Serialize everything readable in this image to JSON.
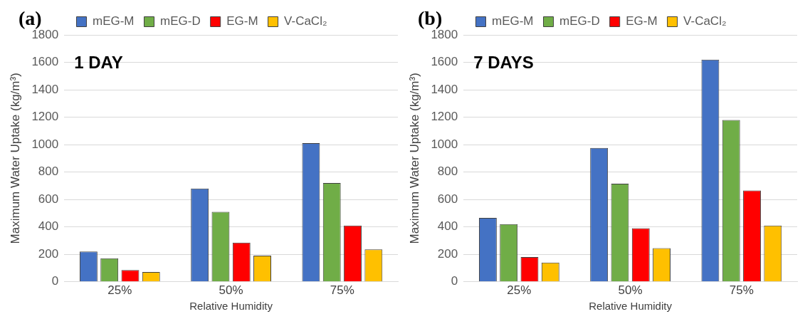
{
  "chart_data": [
    {
      "type": "bar",
      "title": "(a)",
      "annotations": [
        "1 DAY"
      ],
      "xlabel": "Relative Humidity",
      "ylabel": "Maximum Water Uptake (kg/m³)",
      "categories": [
        "25%",
        "50%",
        "75%"
      ],
      "series": [
        {
          "name": "mEG-M",
          "color": "#4472c4",
          "values": [
            220,
            680,
            1010
          ]
        },
        {
          "name": "mEG-D",
          "color": "#70ad47",
          "values": [
            170,
            510,
            720
          ]
        },
        {
          "name": "EG-M",
          "color": "#ff0000",
          "values": [
            85,
            285,
            410
          ]
        },
        {
          "name": "V-CaCl₂",
          "color": "#ffc000",
          "values": [
            70,
            190,
            235
          ]
        }
      ],
      "ylim": [
        0,
        1800
      ],
      "yticks": [
        0,
        200,
        400,
        600,
        800,
        1000,
        1200,
        1400,
        1600,
        1800
      ],
      "grid": "y",
      "legend": "top"
    },
    {
      "type": "bar",
      "title": "(b)",
      "annotations": [
        "7 DAYS"
      ],
      "xlabel": "Relative Humidity",
      "ylabel": "Maximum Water Uptake (kg/m³)",
      "categories": [
        "25%",
        "50%",
        "75%"
      ],
      "series": [
        {
          "name": "mEG-M",
          "color": "#4472c4",
          "values": [
            465,
            975,
            1620
          ]
        },
        {
          "name": "mEG-D",
          "color": "#70ad47",
          "values": [
            420,
            715,
            1180
          ]
        },
        {
          "name": "EG-M",
          "color": "#ff0000",
          "values": [
            180,
            390,
            665
          ]
        },
        {
          "name": "V-CaCl₂",
          "color": "#ffc000",
          "values": [
            140,
            245,
            410
          ]
        }
      ],
      "ylim": [
        0,
        1800
      ],
      "yticks": [
        0,
        200,
        400,
        600,
        800,
        1000,
        1200,
        1400,
        1600,
        1800
      ],
      "grid": "y",
      "legend": "top"
    }
  ]
}
